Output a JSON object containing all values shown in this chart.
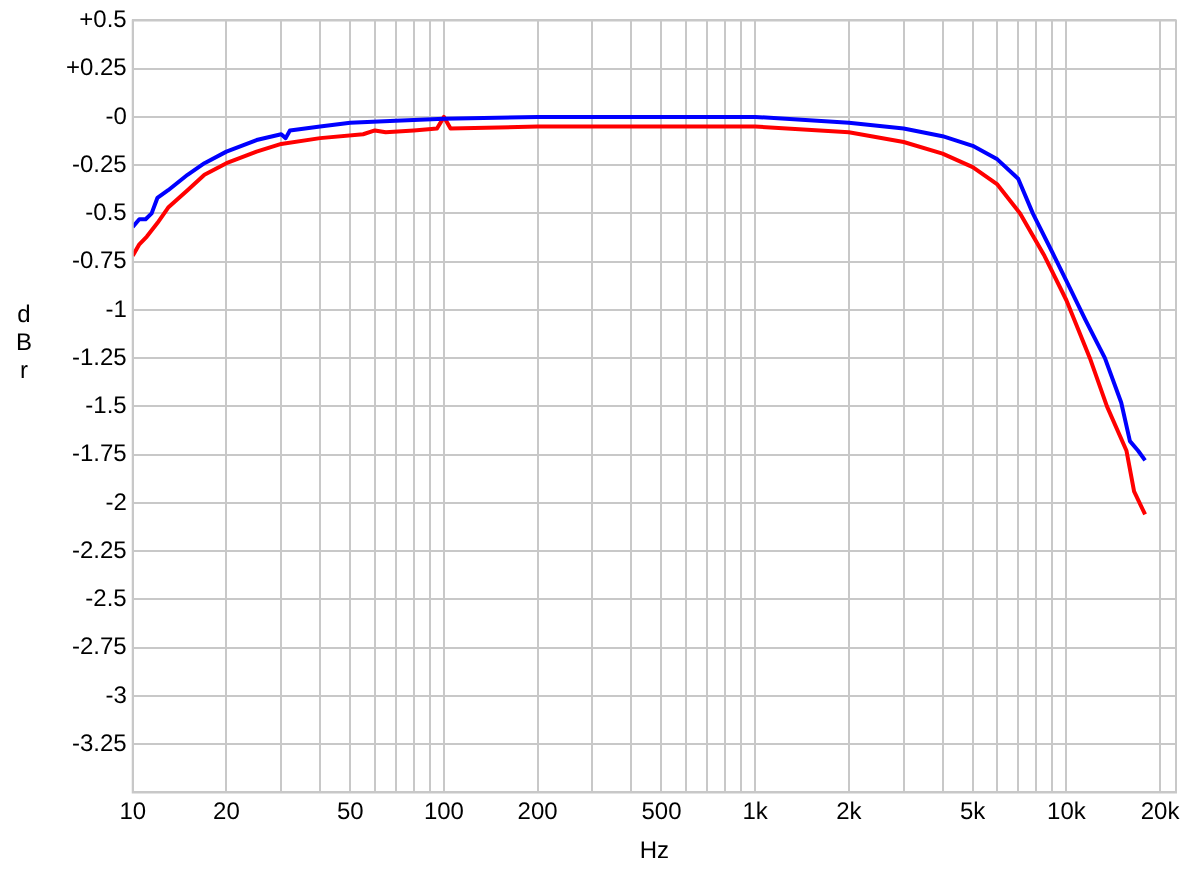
{
  "chart_data": {
    "type": "line",
    "xlabel": "Hz",
    "ylabel": "dBr",
    "log": "x",
    "grid": true,
    "legend": false,
    "marker": "none",
    "line_style": "solid",
    "xlim": [
      10,
      22500
    ],
    "ylim": [
      -3.5,
      0.5
    ],
    "xticks": [
      10,
      20,
      {
        "value": 30,
        "label": null
      },
      {
        "value": 40,
        "label": null
      },
      50,
      {
        "value": 60,
        "label": null
      },
      {
        "value": 70,
        "label": null
      },
      {
        "value": 80,
        "label": null
      },
      {
        "value": 90,
        "label": null
      },
      100,
      200,
      {
        "value": 300,
        "label": null
      },
      {
        "value": 400,
        "label": null
      },
      500,
      {
        "value": 600,
        "label": null
      },
      {
        "value": 700,
        "label": null
      },
      {
        "value": 800,
        "label": null
      },
      {
        "value": 900,
        "label": null
      },
      {
        "value": 1000,
        "label": "1k"
      },
      {
        "value": 2000,
        "label": "2k"
      },
      {
        "value": 3000,
        "label": null
      },
      {
        "value": 4000,
        "label": null
      },
      {
        "value": 5000,
        "label": "5k"
      },
      {
        "value": 6000,
        "label": null
      },
      {
        "value": 7000,
        "label": null
      },
      {
        "value": 8000,
        "label": null
      },
      {
        "value": 9000,
        "label": null
      },
      {
        "value": 10000,
        "label": "10k"
      },
      {
        "value": 20000,
        "label": "20k"
      }
    ],
    "yticks": [
      {
        "value": 0.5,
        "label": "+0.5"
      },
      {
        "value": 0.25,
        "label": "+0.25"
      },
      {
        "value": 0,
        "label": "-0"
      },
      -0.25,
      -0.5,
      -0.75,
      -1,
      -1.25,
      -1.5,
      -1.75,
      -2,
      -2.25,
      -2.5,
      -2.75,
      -3,
      -3.25,
      {
        "value": -3.5,
        "label": null
      }
    ],
    "series": [
      {
        "color": "#0000ff",
        "x": [
          10,
          10.5,
          11,
          11.5,
          12,
          13,
          15,
          17,
          20,
          25,
          30,
          31,
          32,
          40,
          50,
          70,
          100,
          200,
          500,
          1000,
          2000,
          3000,
          4000,
          5000,
          6000,
          7000,
          7800,
          9000,
          10000,
          11500,
          13300,
          15000,
          16000,
          17000,
          17900
        ],
        "values": [
          -0.57,
          -0.53,
          -0.53,
          -0.5,
          -0.42,
          -0.38,
          -0.3,
          -0.24,
          -0.18,
          -0.12,
          -0.09,
          -0.11,
          -0.07,
          -0.05,
          -0.03,
          -0.02,
          -0.01,
          0,
          0,
          0,
          -0.03,
          -0.06,
          -0.1,
          -0.15,
          -0.22,
          -0.32,
          -0.5,
          -0.7,
          -0.85,
          -1.05,
          -1.25,
          -1.48,
          -1.68,
          -1.73,
          -1.78
        ]
      },
      {
        "color": "#ff0000",
        "x": [
          10,
          10.5,
          11.1,
          12,
          13,
          15,
          17,
          20,
          25,
          30,
          40,
          55,
          60,
          65,
          80,
          95,
          100,
          105,
          200,
          500,
          1000,
          2000,
          3000,
          4000,
          5000,
          6000,
          7100,
          8500,
          10000,
          11900,
          13500,
          15600,
          16500,
          17900
        ],
        "values": [
          -0.72,
          -0.66,
          -0.62,
          -0.55,
          -0.47,
          -0.38,
          -0.3,
          -0.24,
          -0.18,
          -0.14,
          -0.11,
          -0.09,
          -0.07,
          -0.08,
          -0.07,
          -0.06,
          0,
          -0.06,
          -0.05,
          -0.05,
          -0.05,
          -0.08,
          -0.13,
          -0.19,
          -0.26,
          -0.35,
          -0.5,
          -0.72,
          -0.95,
          -1.25,
          -1.5,
          -1.73,
          -1.94,
          -2.06
        ]
      }
    ]
  }
}
